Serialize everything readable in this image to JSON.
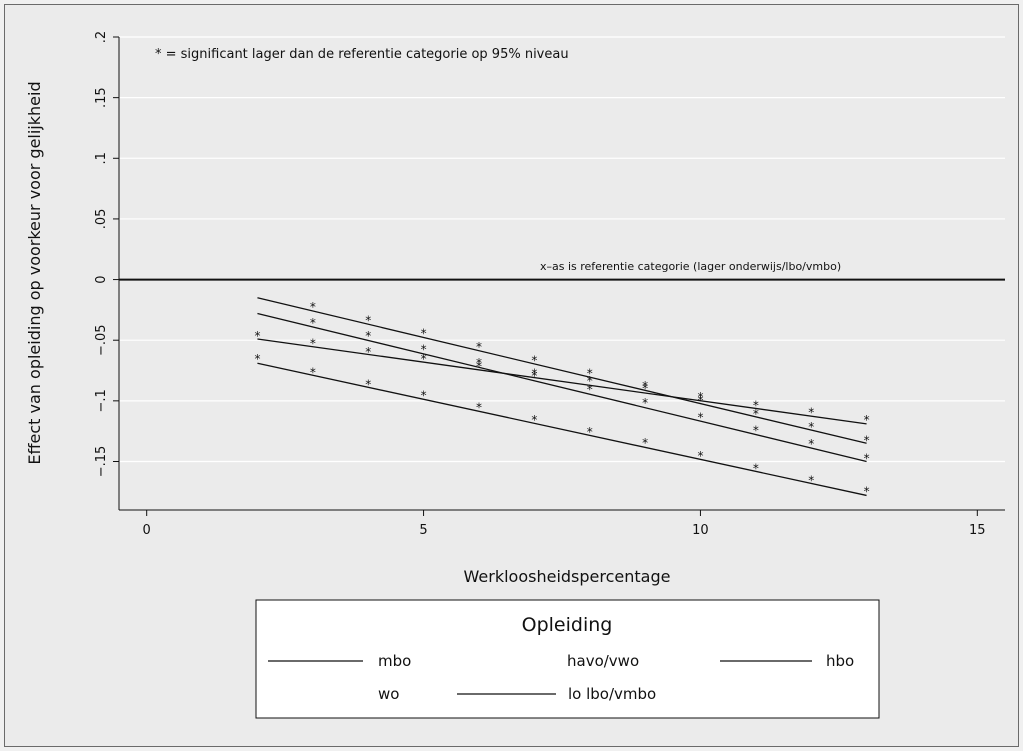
{
  "chart_data": {
    "type": "line",
    "title": "",
    "xlabel": "Werkloosheidspercentage",
    "ylabel": "Effect van opleiding op voorkeur voor gelijkheid",
    "xlim": [
      -0.5,
      15.5
    ],
    "ylim": [
      -0.19,
      0.2
    ],
    "x_ticks": [
      0,
      5,
      10,
      15
    ],
    "x_tick_labels": [
      "0",
      "5",
      "10",
      "15"
    ],
    "y_ticks": [
      0.2,
      0.15,
      0.1,
      0.05,
      0,
      -0.05,
      -0.1,
      -0.15
    ],
    "y_tick_labels": [
      ".2",
      ".15",
      ".1",
      ".05",
      "0",
      "−.05",
      "−.1",
      "−.15"
    ],
    "grid": "horizontal",
    "reference_line": {
      "y": 0,
      "label": "x–as is referentie categorie (lager onderwijs/lbo/vmbo)"
    },
    "significance_note": "* = significant lager dan de referentie categorie op 95% niveau",
    "marker_symbol": "*",
    "series": [
      {
        "name": "mbo",
        "x": [
          2,
          13
        ],
        "y": [
          -0.049,
          -0.119
        ]
      },
      {
        "name": "havo/vwo",
        "x": [
          2,
          13
        ],
        "y": [
          -0.015,
          -0.135
        ]
      },
      {
        "name": "hbo",
        "x": [
          2,
          13
        ],
        "y": [
          -0.028,
          -0.15
        ]
      },
      {
        "name": "wo",
        "x": [
          2,
          13
        ],
        "y": [
          -0.069,
          -0.178
        ]
      },
      {
        "name": "lo lbo/vmbo",
        "x": [
          2,
          13
        ],
        "y": [
          0,
          0
        ]
      }
    ],
    "markers": [
      {
        "x": 2,
        "y": -0.045
      },
      {
        "x": 2,
        "y": -0.064
      },
      {
        "x": 3,
        "y": -0.021
      },
      {
        "x": 3,
        "y": -0.034
      },
      {
        "x": 3,
        "y": -0.051
      },
      {
        "x": 3,
        "y": -0.075
      },
      {
        "x": 4,
        "y": -0.032
      },
      {
        "x": 4,
        "y": -0.045
      },
      {
        "x": 4,
        "y": -0.058
      },
      {
        "x": 4,
        "y": -0.085
      },
      {
        "x": 5,
        "y": -0.043
      },
      {
        "x": 5,
        "y": -0.056
      },
      {
        "x": 5,
        "y": -0.064
      },
      {
        "x": 5,
        "y": -0.094
      },
      {
        "x": 6,
        "y": -0.054
      },
      {
        "x": 6,
        "y": -0.067
      },
      {
        "x": 6,
        "y": -0.07
      },
      {
        "x": 6,
        "y": -0.104
      },
      {
        "x": 7,
        "y": -0.065
      },
      {
        "x": 7,
        "y": -0.076
      },
      {
        "x": 7,
        "y": -0.078
      },
      {
        "x": 7,
        "y": -0.114
      },
      {
        "x": 8,
        "y": -0.076
      },
      {
        "x": 8,
        "y": -0.082
      },
      {
        "x": 8,
        "y": -0.089
      },
      {
        "x": 8,
        "y": -0.124
      },
      {
        "x": 9,
        "y": -0.086
      },
      {
        "x": 9,
        "y": -0.088
      },
      {
        "x": 9,
        "y": -0.1
      },
      {
        "x": 9,
        "y": -0.133
      },
      {
        "x": 10,
        "y": -0.095
      },
      {
        "x": 10,
        "y": -0.098
      },
      {
        "x": 10,
        "y": -0.112
      },
      {
        "x": 10,
        "y": -0.144
      },
      {
        "x": 11,
        "y": -0.102
      },
      {
        "x": 11,
        "y": -0.109
      },
      {
        "x": 11,
        "y": -0.123
      },
      {
        "x": 11,
        "y": -0.154
      },
      {
        "x": 12,
        "y": -0.108
      },
      {
        "x": 12,
        "y": -0.12
      },
      {
        "x": 12,
        "y": -0.134
      },
      {
        "x": 12,
        "y": -0.164
      },
      {
        "x": 13,
        "y": -0.114
      },
      {
        "x": 13,
        "y": -0.131
      },
      {
        "x": 13,
        "y": -0.146
      },
      {
        "x": 13,
        "y": -0.173
      }
    ],
    "legend": {
      "title": "Opleiding",
      "placement": "bottom",
      "items": [
        {
          "label": "mbo",
          "has_line": true
        },
        {
          "label": "havo/vwo",
          "has_line": false
        },
        {
          "label": "hbo",
          "has_line": true
        },
        {
          "label": "wo",
          "has_line": false
        },
        {
          "label": "lo lbo/vmbo",
          "has_line": true
        }
      ]
    },
    "colors": {
      "line": "#111111",
      "grid": "#ffffff",
      "plot_bg": "#ebebeb",
      "page_bg": "#ebebeb"
    }
  }
}
